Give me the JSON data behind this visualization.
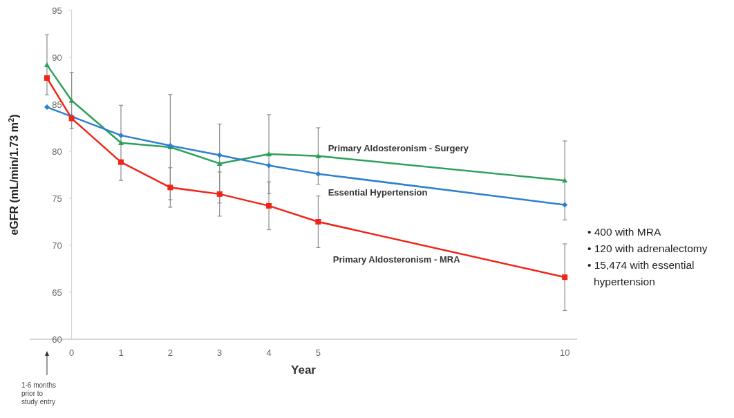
{
  "chart_data": {
    "type": "line",
    "xlabel": "Year",
    "ylabel": "eGFR (mL/min/1.73 m$^{2}$)",
    "x": [
      -0.5,
      0,
      1,
      2,
      3,
      4,
      5,
      10
    ],
    "xlim": [
      -0.85,
      10.25
    ],
    "ylim": [
      60,
      95
    ],
    "xticks": [
      0,
      1,
      2,
      3,
      4,
      5,
      10
    ],
    "yticks": [
      60,
      65,
      70,
      75,
      80,
      85,
      90,
      95
    ],
    "grid": false,
    "line_style": "solid",
    "series": [
      {
        "name": "Primary Aldosteronism - Surgery",
        "color": "#2ca05a",
        "marker": "triangle",
        "values": [
          89.2,
          85.4,
          80.9,
          80.45,
          78.7,
          79.7,
          79.5,
          76.9
        ],
        "errors": [
          3.2,
          3.0,
          4.0,
          5.6,
          4.2,
          4.2,
          3.0,
          4.2
        ]
      },
      {
        "name": "Essential Hypertension",
        "color": "#2f7fd0",
        "marker": "diamond",
        "values": [
          84.7,
          83.7,
          81.7,
          80.6,
          79.6,
          78.5,
          77.6,
          74.3
        ]
      },
      {
        "name": "Primary Aldosteronism - MRA",
        "color": "#f02418",
        "marker": "square",
        "values": [
          87.8,
          83.5,
          78.85,
          76.15,
          75.45,
          74.2,
          72.5,
          66.6
        ],
        "errors": [
          null,
          null,
          null,
          2.1,
          2.35,
          2.55,
          2.75,
          3.55
        ]
      }
    ],
    "annotations": [
      "1-6 months prior to study entry",
      "• 400 with MRA",
      "• 120 with adrenalectomy",
      "• 15,474 with essential hypertension"
    ]
  }
}
